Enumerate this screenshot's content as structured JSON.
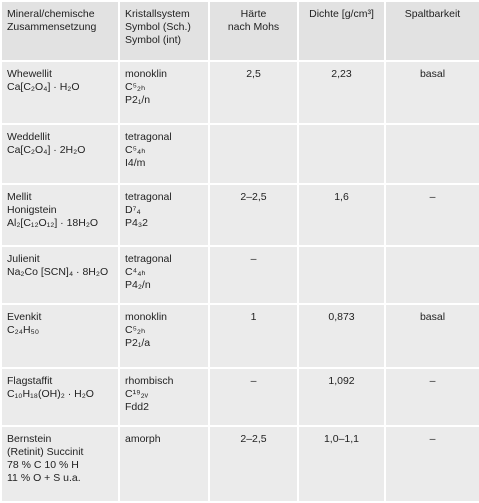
{
  "table": {
    "header": [
      [
        "Mineral/chemische",
        "Zusammensetzung"
      ],
      [
        "Kristallsystem",
        "Symbol (Sch.)",
        "Symbol (int)"
      ],
      [
        "Härte",
        "nach Mohs"
      ],
      [
        "Dichte [g/cm³]"
      ],
      [
        "Spaltbarkeit"
      ]
    ],
    "rows": [
      [
        [
          "Whewellit",
          "Ca[C₂O₄] · H₂O"
        ],
        [
          "monoklin",
          "C⁵₂ₕ",
          "P2₁/n"
        ],
        [
          "2,5"
        ],
        [
          "2,23"
        ],
        [
          "basal"
        ]
      ],
      [
        [
          "Weddellit",
          "Ca[C₂O₄] · 2H₂O"
        ],
        [
          "tetragonal",
          "C⁵₄ₕ",
          "I4/m"
        ],
        [],
        [],
        []
      ],
      [
        [
          "Mellit",
          "Honigstein",
          "Al₂[C₁₂O₁₂] · 18H₂O"
        ],
        [
          "tetragonal",
          "D⁷₄",
          "P4₃2"
        ],
        [
          "2–2,5"
        ],
        [
          "1,6"
        ],
        [
          "–"
        ]
      ],
      [
        [
          "Julienit",
          "Na₂Co [SCN]₄ · 8H₂O"
        ],
        [
          "tetragonal",
          "C⁴₄ₕ",
          "P4₂/n"
        ],
        [
          "–"
        ],
        [],
        []
      ],
      [
        [
          "Evenkit",
          "C₂₄H₅₀"
        ],
        [
          "monoklin",
          "C⁵₂ₕ",
          "P2₁/a"
        ],
        [
          "1"
        ],
        [
          "0,873"
        ],
        [
          "basal"
        ]
      ],
      [
        [
          "Flagstaffit",
          "C₁₀H₁₈(OH)₂ · H₂O"
        ],
        [
          "rhombisch",
          "C¹⁹₂ᵥ",
          "Fdd2"
        ],
        [
          "–"
        ],
        [
          "1,092"
        ],
        [
          "–"
        ]
      ],
      [
        [
          "Bernstein",
          "(Retinit) Succinit",
          "78 % C 10 % H",
          "11 % O + S u.a."
        ],
        [
          "amorph"
        ],
        [
          "2–2,5"
        ],
        [
          "1,0–1,1"
        ],
        [
          "–"
        ]
      ]
    ]
  }
}
